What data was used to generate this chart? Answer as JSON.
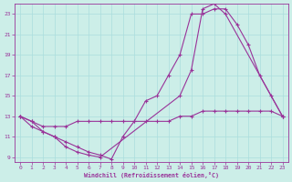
{
  "xlabel": "Windchill (Refroidissement éolien,°C)",
  "bg_color": "#cceee8",
  "grid_color": "#aadddd",
  "line_color": "#993399",
  "xlim": [
    -0.5,
    23.5
  ],
  "ylim": [
    8.5,
    24.0
  ],
  "yticks": [
    9,
    11,
    13,
    15,
    17,
    19,
    21,
    23
  ],
  "xticks": [
    0,
    1,
    2,
    3,
    4,
    5,
    6,
    7,
    8,
    9,
    10,
    11,
    12,
    13,
    14,
    15,
    16,
    17,
    18,
    19,
    20,
    21,
    22,
    23
  ],
  "series": [
    {
      "x": [
        0,
        1,
        2,
        3,
        4,
        5,
        6,
        7,
        8,
        9,
        10,
        11,
        12,
        13,
        14,
        15,
        16,
        17,
        18,
        19,
        20,
        21,
        22,
        23
      ],
      "y": [
        13,
        12.5,
        11.5,
        11,
        10.5,
        10,
        9.5,
        9.2,
        8.8,
        11,
        12.5,
        14.5,
        15,
        17,
        19,
        23,
        23,
        23.5,
        23.5,
        22,
        20,
        17,
        15,
        13
      ]
    },
    {
      "x": [
        0,
        1,
        2,
        3,
        4,
        5,
        6,
        7,
        8,
        9,
        10,
        11,
        12,
        13,
        14,
        15,
        16,
        17,
        18,
        19,
        20,
        21,
        22,
        23
      ],
      "y": [
        13,
        12,
        11.5,
        11,
        10,
        9.5,
        9.2,
        9.0,
        null,
        null,
        null,
        null,
        null,
        null,
        15,
        17.5,
        23.5,
        24,
        23,
        null,
        null,
        null,
        null,
        13
      ]
    },
    {
      "x": [
        0,
        1,
        2,
        3,
        4,
        5,
        6,
        7,
        8,
        9,
        10,
        11,
        12,
        13,
        14,
        15,
        16,
        17,
        18,
        19,
        20,
        21,
        22,
        23
      ],
      "y": [
        13,
        12.5,
        12,
        12,
        12,
        12.5,
        12.5,
        12.5,
        12.5,
        12.5,
        12.5,
        12.5,
        12.5,
        12.5,
        13,
        13,
        13.5,
        13.5,
        13.5,
        13.5,
        13.5,
        13.5,
        13.5,
        13
      ]
    }
  ]
}
